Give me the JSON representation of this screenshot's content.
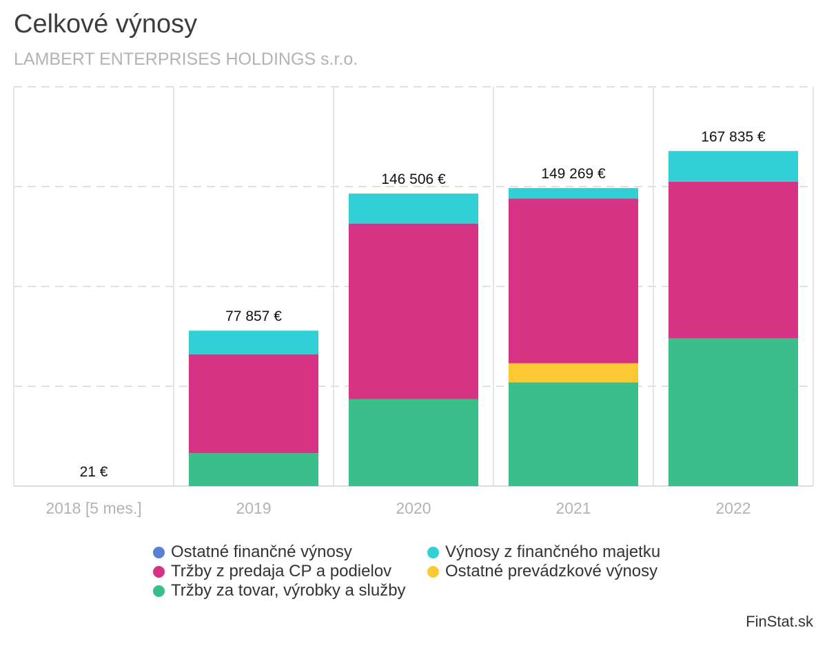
{
  "title": "Celkové výnosy",
  "subtitle": "LAMBERT ENTERPRISES HOLDINGS s.r.o.",
  "brand": "FinStat.sk",
  "chart_data": {
    "type": "bar",
    "stacked": true,
    "categories": [
      "2018 [5 mes.]",
      "2019",
      "2020",
      "2021",
      "2022"
    ],
    "totals_labels": [
      "21 €",
      "77 857 €",
      "146 506 €",
      "149 269 €",
      "167 835 €"
    ],
    "totals": [
      21,
      77857,
      146506,
      149269,
      167835
    ],
    "ylim": [
      0,
      200000
    ],
    "grid": true,
    "legend_position": "bottom",
    "series": [
      {
        "name": "Tržby za tovar, výrobky a služby",
        "color": "#3bbf8a",
        "values": [
          0,
          16500,
          43500,
          52000,
          74000
        ]
      },
      {
        "name": "Ostatné prevádzkové výnosy",
        "color": "#fcc934",
        "values": [
          0,
          0,
          0,
          9500,
          0
        ]
      },
      {
        "name": "Tržby z predaja CP a podielov",
        "color": "#d63384",
        "values": [
          0,
          49500,
          88000,
          82500,
          78500
        ]
      },
      {
        "name": "Výnosy z finančného majetku",
        "color": "#31d0d6",
        "values": [
          21,
          11857,
          15006,
          5269,
          15335
        ]
      },
      {
        "name": "Ostatné finančné výnosy",
        "color": "#5b7fd6",
        "values": [
          0,
          0,
          0,
          0,
          0
        ]
      }
    ],
    "legend_order": [
      "Ostatné finančné výnosy",
      "Výnosy z finančného majetku",
      "Tržby z predaja CP a podielov",
      "Ostatné prevádzkové výnosy",
      "Tržby za tovar, výrobky a služby"
    ]
  }
}
